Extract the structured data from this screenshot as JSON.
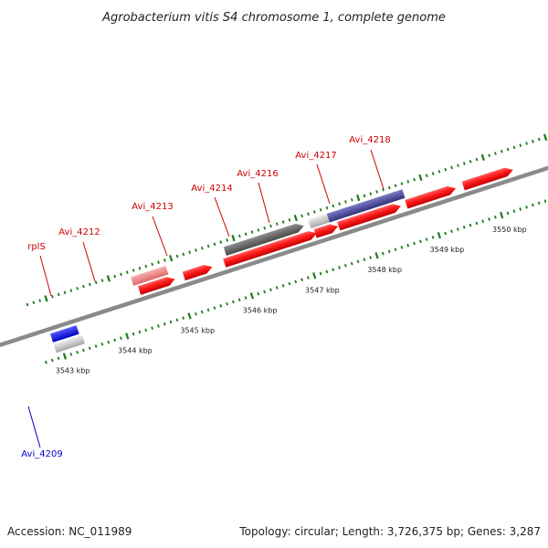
{
  "title": "Agrobacterium vitis S4 chromosome 1, complete genome",
  "footer": {
    "accession": "Accession: NC_011989",
    "summary": "Topology: circular; Length: 3,726,375 bp; Genes: 3,287"
  },
  "scale": {
    "unit": "kbp",
    "ticks": [
      {
        "kbp": 3543,
        "label": "3543 kbp"
      },
      {
        "kbp": 3544,
        "label": "3544 kbp"
      },
      {
        "kbp": 3545,
        "label": "3545 kbp"
      },
      {
        "kbp": 3546,
        "label": "3546 kbp"
      },
      {
        "kbp": 3547,
        "label": "3547 kbp"
      },
      {
        "kbp": 3548,
        "label": "3548 kbp"
      },
      {
        "kbp": 3549,
        "label": "3549 kbp"
      },
      {
        "kbp": 3550,
        "label": "3550 kbp"
      }
    ]
  },
  "colors": {
    "gene": "#ff1a1a",
    "gene_label": "#cc0000",
    "rna": "#f08080",
    "highlight_label": "#0000cc",
    "blue_feature": "#1a1aee",
    "purple_feature": "#4a4aa0",
    "olive_feature": "#b5b070",
    "grey_feature": "#707070",
    "light_grey_feature": "#c8c8c8",
    "backbone": "#8a8a8a",
    "tick": "#1a7a1a"
  },
  "gene_labels": [
    {
      "id": "rpls",
      "text": "rplS",
      "color": "#cc0000"
    },
    {
      "id": "avi-4212",
      "text": "Avi_4212",
      "color": "#cc0000"
    },
    {
      "id": "avi-4213",
      "text": "Avi_4213",
      "color": "#cc0000"
    },
    {
      "id": "avi-4214",
      "text": "Avi_4214",
      "color": "#cc0000"
    },
    {
      "id": "avi-4216",
      "text": "Avi_4216",
      "color": "#cc0000"
    },
    {
      "id": "avi-4217",
      "text": "Avi_4217",
      "color": "#cc0000"
    },
    {
      "id": "avi-4218",
      "text": "Avi_4218",
      "color": "#cc0000"
    },
    {
      "id": "avi-4209",
      "text": "Avi_4209",
      "color": "#0000cc"
    }
  ]
}
